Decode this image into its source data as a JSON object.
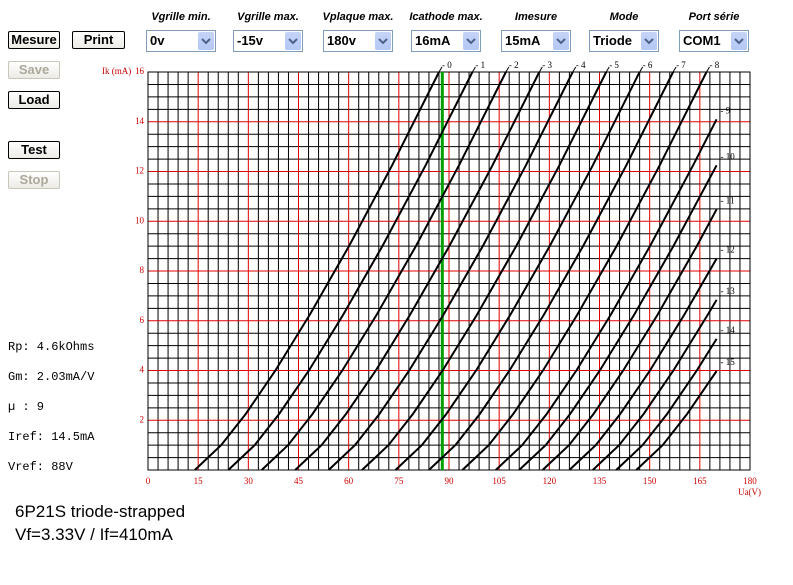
{
  "toolbar": {
    "buttons": [
      {
        "label": "Mesure",
        "enabled": true
      },
      {
        "label": "Print",
        "enabled": true
      },
      {
        "label": "Save",
        "enabled": false
      },
      {
        "label": "Load",
        "enabled": true
      },
      {
        "label": "Test",
        "enabled": true
      },
      {
        "label": "Stop",
        "enabled": false
      }
    ]
  },
  "settings": [
    {
      "label": "Vgrille min.",
      "value": "0v"
    },
    {
      "label": "Vgrille max.",
      "value": "-15v"
    },
    {
      "label": "Vplaque max.",
      "value": "180v"
    },
    {
      "label": "Icathode max.",
      "value": "16mA"
    },
    {
      "label": "Imesure",
      "value": "15mA"
    },
    {
      "label": "Mode",
      "value": "Triode"
    },
    {
      "label": "Port série",
      "value": "COM1"
    }
  ],
  "stats": [
    "Rp: 4.6kOhms",
    "Gm: 2.03mA/V",
    "µ : 9",
    "Iref: 14.5mA",
    "Vref: 88V"
  ],
  "footer": {
    "lines": [
      "6P21S triode-strapped",
      "Vf=3.33V / If=410mA"
    ]
  },
  "chart_data": {
    "type": "line",
    "x_label": "Ua(V)",
    "y_label": "Ik (mA)",
    "xlim": [
      0,
      180
    ],
    "ylim": [
      0,
      16
    ],
    "xticks": [
      0,
      15,
      30,
      45,
      60,
      75,
      90,
      105,
      120,
      135,
      150,
      165,
      180
    ],
    "yticks": [
      2,
      4,
      6,
      8,
      10,
      12,
      14,
      16
    ],
    "grid": true,
    "grid_color": "#e00000",
    "minor_grid_color": "#000000",
    "tick_label_color": "#cc0000",
    "ref_line": {
      "x": 88,
      "color": "#00a000"
    },
    "series": [
      {
        "name": "- 0",
        "color": "#000000",
        "x": [
          14,
          21.9,
          29.2,
          38.1,
          48.4,
          60.1,
          73,
          87
        ],
        "values": [
          0,
          1,
          2.25,
          4,
          6.25,
          9,
          12.25,
          16
        ]
      },
      {
        "name": "- 1",
        "color": "#000000",
        "x": [
          24,
          31.9,
          39.2,
          48.1,
          58.4,
          70.1,
          83,
          97
        ],
        "values": [
          0,
          1,
          2.25,
          4,
          6.25,
          9,
          12.25,
          16
        ]
      },
      {
        "name": "- 2",
        "color": "#000000",
        "x": [
          34,
          41.9,
          49.2,
          58.1,
          68.4,
          80.1,
          93,
          107
        ],
        "values": [
          0,
          1,
          2.25,
          4,
          6.25,
          9,
          12.25,
          16
        ]
      },
      {
        "name": "- 3",
        "color": "#000000",
        "x": [
          44,
          51.9,
          59.2,
          68.1,
          78.4,
          90.1,
          103,
          117
        ],
        "values": [
          0,
          1,
          2.25,
          4,
          6.25,
          9,
          12.25,
          16
        ]
      },
      {
        "name": "- 4",
        "color": "#000000",
        "x": [
          54,
          61.9,
          69.2,
          78.1,
          88.4,
          100.1,
          113,
          127
        ],
        "values": [
          0,
          1,
          2.25,
          4,
          6.25,
          9,
          12.25,
          16
        ]
      },
      {
        "name": "- 5",
        "color": "#000000",
        "x": [
          64,
          71.9,
          79.2,
          88.1,
          98.4,
          110.1,
          123,
          137
        ],
        "values": [
          0,
          1,
          2.25,
          4,
          6.25,
          9,
          12.25,
          16
        ]
      },
      {
        "name": "- 6",
        "color": "#000000",
        "x": [
          74,
          81.9,
          89.2,
          98.1,
          108.4,
          120.1,
          133,
          147
        ],
        "values": [
          0,
          1,
          2.25,
          4,
          6.25,
          9,
          12.25,
          16
        ]
      },
      {
        "name": "- 7",
        "color": "#000000",
        "x": [
          84,
          91.9,
          99.2,
          108.1,
          118.4,
          130.1,
          143,
          157
        ],
        "values": [
          0,
          1,
          2.25,
          4,
          6.25,
          9,
          12.25,
          16
        ]
      },
      {
        "name": "- 8",
        "color": "#000000",
        "x": [
          94,
          101.9,
          109.2,
          118.1,
          128.4,
          140.1,
          153,
          167
        ],
        "values": [
          0,
          1,
          2.25,
          4,
          6.25,
          9,
          12.25,
          16
        ]
      },
      {
        "name": "- 9",
        "color": "#000000",
        "x": [
          104,
          111.9,
          119.2,
          128.1,
          138.4,
          150.1,
          163,
          170
        ],
        "values": [
          0,
          1,
          2.25,
          4,
          6.25,
          9,
          12.25,
          14.1
        ]
      },
      {
        "name": "- 10",
        "color": "#000000",
        "x": [
          111,
          118.9,
          126.2,
          135.1,
          145.4,
          157.1,
          170
        ],
        "values": [
          0,
          1,
          2.25,
          4,
          6.25,
          9,
          12.25
        ]
      },
      {
        "name": "- 11",
        "color": "#000000",
        "x": [
          118,
          125.9,
          133.2,
          142.1,
          152.4,
          164.1,
          170
        ],
        "values": [
          0,
          1,
          2.25,
          4,
          6.25,
          9,
          10.48
        ]
      },
      {
        "name": "- 12",
        "color": "#000000",
        "x": [
          126,
          133.9,
          141.2,
          150.1,
          160.4,
          170
        ],
        "values": [
          0,
          1,
          2.25,
          4,
          6.25,
          8.5
        ]
      },
      {
        "name": "- 13",
        "color": "#000000",
        "x": [
          133,
          140.9,
          148.2,
          157.1,
          167.4,
          170
        ],
        "values": [
          0,
          1,
          2.25,
          4,
          6.25,
          6.84
        ]
      },
      {
        "name": "- 14",
        "color": "#000000",
        "x": [
          140,
          147.9,
          155.2,
          164.1,
          170
        ],
        "values": [
          0,
          1,
          2.25,
          4,
          5.27
        ]
      },
      {
        "name": "- 15",
        "color": "#000000",
        "x": [
          146,
          153.9,
          161.2,
          170
        ],
        "values": [
          0,
          1,
          2.25,
          3.98
        ]
      }
    ]
  }
}
